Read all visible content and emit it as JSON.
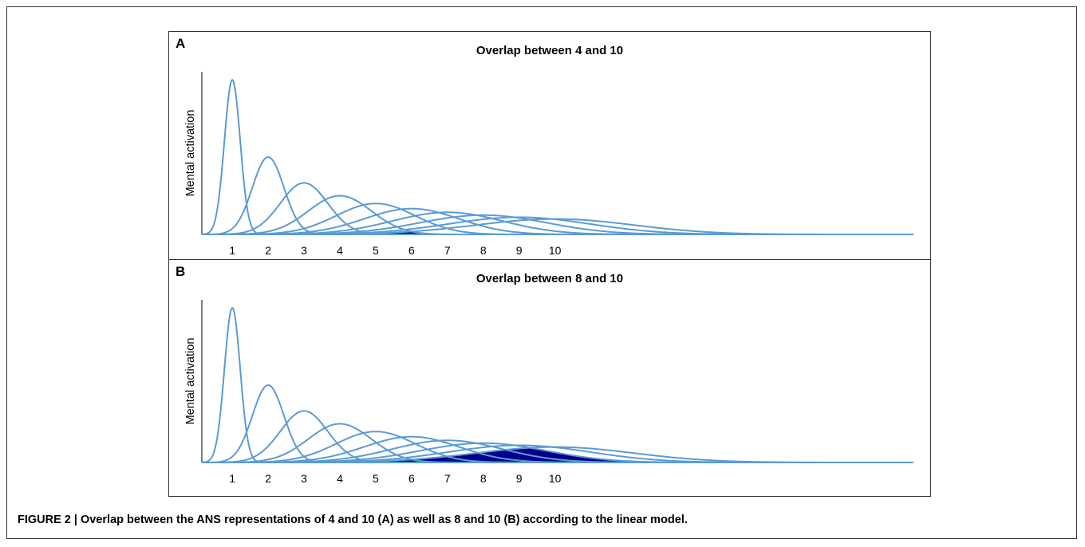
{
  "figure": {
    "caption": "FIGURE 2 | Overlap between the ANS representations of 4 and 10 (A) as well as 8 and 10 (B) according to the linear model."
  },
  "colors": {
    "curve": "#5b9bd5",
    "overlap": "#00008b",
    "axis": "#000000"
  },
  "chart_data": [
    {
      "type": "line",
      "panel_label": "A",
      "title": "Overlap between 4 and 10",
      "xlabel": "",
      "ylabel": "Mental activation",
      "xlim": [
        0.15,
        20
      ],
      "x_ticks": [
        1,
        2,
        3,
        4,
        5,
        6,
        7,
        8,
        9,
        10
      ],
      "curve_model": "gaussian, mean n, sd proportional to n (linear model)",
      "means": [
        1,
        2,
        3,
        4,
        5,
        6,
        7,
        8,
        9,
        10
      ],
      "relative_peaks": [
        1.0,
        0.5,
        0.333,
        0.25,
        0.2,
        0.167,
        0.143,
        0.125,
        0.111,
        0.1
      ],
      "overlap_pair": [
        4,
        10
      ]
    },
    {
      "type": "line",
      "panel_label": "B",
      "title": "Overlap between 8 and 10",
      "xlabel": "",
      "ylabel": "Mental activation",
      "xlim": [
        0.15,
        20
      ],
      "x_ticks": [
        1,
        2,
        3,
        4,
        5,
        6,
        7,
        8,
        9,
        10
      ],
      "curve_model": "gaussian, mean n, sd proportional to n (linear model)",
      "means": [
        1,
        2,
        3,
        4,
        5,
        6,
        7,
        8,
        9,
        10
      ],
      "relative_peaks": [
        1.0,
        0.5,
        0.333,
        0.25,
        0.2,
        0.167,
        0.143,
        0.125,
        0.111,
        0.1
      ],
      "overlap_pair": [
        8,
        10
      ]
    }
  ]
}
